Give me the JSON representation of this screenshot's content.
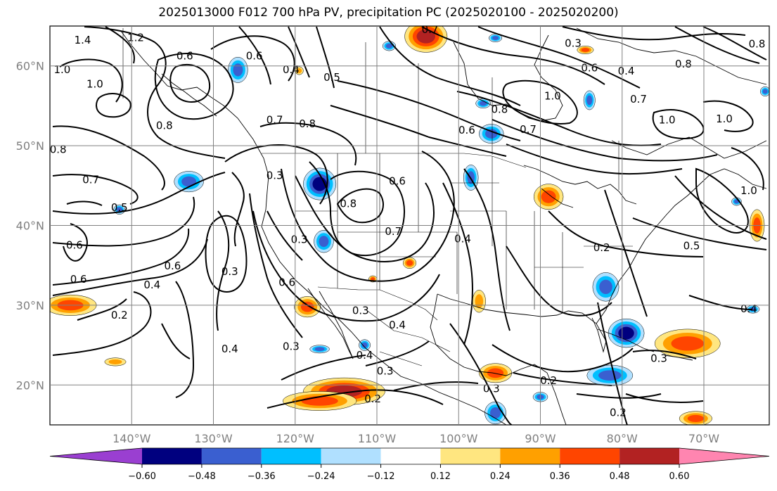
{
  "title": "2025013000 F012 700 hPa PV, precipitation PC (2025020100 - 2025020200)",
  "chart_data": {
    "type": "map-contour",
    "lon_range": [
      -150,
      -62
    ],
    "lat_range": [
      15,
      65
    ],
    "lon_ticks": [
      {
        "value": -140,
        "label": "140°W"
      },
      {
        "value": -130,
        "label": "130°W"
      },
      {
        "value": -120,
        "label": "120°W"
      },
      {
        "value": -110,
        "label": "110°W"
      },
      {
        "value": -100,
        "label": "100°W"
      },
      {
        "value": -90,
        "label": "90°W"
      },
      {
        "value": -80,
        "label": "80°W"
      },
      {
        "value": -70,
        "label": "70°W"
      }
    ],
    "lat_ticks": [
      {
        "value": 20,
        "label": "20°N"
      },
      {
        "value": 30,
        "label": "30°N"
      },
      {
        "value": 40,
        "label": "40°N"
      },
      {
        "value": 50,
        "label": "50°N"
      },
      {
        "value": 60,
        "label": "60°N"
      }
    ],
    "grid": true,
    "colorbar": {
      "orientation": "horizontal",
      "extend": "both",
      "colors": [
        "#9a3fd1",
        "#00007f",
        "#3a5fd0",
        "#00bfff",
        "#b0e0ff",
        "#ffffff",
        "#ffe680",
        "#ffa000",
        "#ff4500",
        "#b22222",
        "#ff85b0"
      ],
      "ticks": [
        {
          "value": -0.6,
          "label": "−0.60"
        },
        {
          "value": -0.48,
          "label": "−0.48"
        },
        {
          "value": -0.36,
          "label": "−0.36"
        },
        {
          "value": -0.24,
          "label": "−0.24"
        },
        {
          "value": -0.12,
          "label": "−0.12"
        },
        {
          "value": 0.12,
          "label": "0.12"
        },
        {
          "value": 0.24,
          "label": "0.24"
        },
        {
          "value": 0.36,
          "label": "0.36"
        },
        {
          "value": 0.48,
          "label": "0.48"
        },
        {
          "value": 0.6,
          "label": "0.60"
        }
      ]
    },
    "contour_labels": [
      {
        "text": "1.4",
        "lon": -146,
        "lat": 63.2
      },
      {
        "text": "1.2",
        "lon": -139.5,
        "lat": 63.5
      },
      {
        "text": "0.6",
        "lon": -133.5,
        "lat": 61.2
      },
      {
        "text": "1.0",
        "lon": -148.5,
        "lat": 59.5
      },
      {
        "text": "1.0",
        "lon": -144.5,
        "lat": 57.7
      },
      {
        "text": "0.8",
        "lon": -136,
        "lat": 52.5
      },
      {
        "text": "0.8",
        "lon": -149,
        "lat": 49.5
      },
      {
        "text": "0.7",
        "lon": -145,
        "lat": 45.7
      },
      {
        "text": "0.5",
        "lon": -141.5,
        "lat": 42.2
      },
      {
        "text": "0.6",
        "lon": -147,
        "lat": 37.5
      },
      {
        "text": "0.6",
        "lon": -135,
        "lat": 34.9
      },
      {
        "text": "0.6",
        "lon": -146.5,
        "lat": 33.2
      },
      {
        "text": "0.4",
        "lon": -137.5,
        "lat": 32.5
      },
      {
        "text": "0.2",
        "lon": -141.5,
        "lat": 28.7
      },
      {
        "text": "0.3",
        "lon": -128,
        "lat": 34.2
      },
      {
        "text": "0.4",
        "lon": -128,
        "lat": 24.5
      },
      {
        "text": "0.3",
        "lon": -122.5,
        "lat": 46.2
      },
      {
        "text": "0.3",
        "lon": -119.5,
        "lat": 38.2
      },
      {
        "text": "0.6",
        "lon": -121,
        "lat": 32.8
      },
      {
        "text": "0.3",
        "lon": -112,
        "lat": 29.3
      },
      {
        "text": "0.4",
        "lon": -111.5,
        "lat": 23.7
      },
      {
        "text": "0.3",
        "lon": -120.5,
        "lat": 24.8
      },
      {
        "text": "0.6",
        "lon": -125,
        "lat": 61.2
      },
      {
        "text": "0.4",
        "lon": -120.5,
        "lat": 59.5
      },
      {
        "text": "0.5",
        "lon": -115.5,
        "lat": 58.5
      },
      {
        "text": "0.7",
        "lon": -122.5,
        "lat": 53.2
      },
      {
        "text": "0.8",
        "lon": -118.5,
        "lat": 52.7
      },
      {
        "text": "0.6",
        "lon": -107.5,
        "lat": 45.5
      },
      {
        "text": "0.8",
        "lon": -113.5,
        "lat": 42.7
      },
      {
        "text": "0.7",
        "lon": -108,
        "lat": 39.2
      },
      {
        "text": "0.4",
        "lon": -99.5,
        "lat": 38.3
      },
      {
        "text": "0.4",
        "lon": -107.5,
        "lat": 27.5
      },
      {
        "text": "0.3",
        "lon": -109,
        "lat": 21.7
      },
      {
        "text": "0.2",
        "lon": -110.5,
        "lat": 18.2
      },
      {
        "text": "0.7",
        "lon": -103.5,
        "lat": 64.5
      },
      {
        "text": "0.3",
        "lon": -86,
        "lat": 62.8
      },
      {
        "text": "0.6",
        "lon": -84,
        "lat": 59.7
      },
      {
        "text": "0.4",
        "lon": -79.5,
        "lat": 59.3
      },
      {
        "text": "1.0",
        "lon": -88.5,
        "lat": 56.2
      },
      {
        "text": "0.8",
        "lon": -95,
        "lat": 54.5
      },
      {
        "text": "0.6",
        "lon": -99,
        "lat": 51.9
      },
      {
        "text": "0.7",
        "lon": -91.5,
        "lat": 52
      },
      {
        "text": "0.7",
        "lon": -78,
        "lat": 55.8
      },
      {
        "text": "1.0",
        "lon": -74.5,
        "lat": 53.2
      },
      {
        "text": "1.0",
        "lon": -67.5,
        "lat": 53.3
      },
      {
        "text": "0.8",
        "lon": -63.5,
        "lat": 62.7
      },
      {
        "text": "0.8",
        "lon": -72.5,
        "lat": 60.2
      },
      {
        "text": "1.0",
        "lon": -64.5,
        "lat": 44.3
      },
      {
        "text": "0.5",
        "lon": -71.5,
        "lat": 37.4
      },
      {
        "text": "0.2",
        "lon": -82.5,
        "lat": 37.2
      },
      {
        "text": "0.4",
        "lon": -64.5,
        "lat": 29.5
      },
      {
        "text": "0.3",
        "lon": -75.5,
        "lat": 23.3
      },
      {
        "text": "0.2",
        "lon": -89,
        "lat": 20.5
      },
      {
        "text": "0.3",
        "lon": -96,
        "lat": 19.5
      },
      {
        "text": "0.2",
        "lon": -80.5,
        "lat": 16.5
      }
    ],
    "anomaly_areas": [
      {
        "lon": -147.5,
        "lat": 30.0,
        "rx": 3.2,
        "ry": 1.3,
        "level": 0.42
      },
      {
        "lon": -142.0,
        "lat": 22.9,
        "rx": 1.3,
        "ry": 0.5,
        "level": 0.3
      },
      {
        "lon": -114.0,
        "lat": 19.2,
        "rx": 5.0,
        "ry": 1.7,
        "level": 0.55
      },
      {
        "lon": -117.0,
        "lat": 18.0,
        "rx": 4.5,
        "ry": 1.2,
        "level": 0.42
      },
      {
        "lon": -104.0,
        "lat": 63.7,
        "rx": 2.6,
        "ry": 2.0,
        "level": 0.5
      },
      {
        "lon": -89.0,
        "lat": 43.6,
        "rx": 1.8,
        "ry": 1.6,
        "level": 0.45
      },
      {
        "lon": -63.5,
        "lat": 40.0,
        "rx": 0.9,
        "ry": 2.0,
        "level": 0.38
      },
      {
        "lon": -118.5,
        "lat": 29.8,
        "rx": 1.6,
        "ry": 1.3,
        "level": 0.4
      },
      {
        "lon": -106.0,
        "lat": 35.3,
        "rx": 0.8,
        "ry": 0.7,
        "level": 0.38
      },
      {
        "lon": -97.5,
        "lat": 30.5,
        "rx": 0.8,
        "ry": 1.4,
        "level": 0.3
      },
      {
        "lon": -95.5,
        "lat": 21.5,
        "rx": 2.0,
        "ry": 1.2,
        "level": 0.4
      },
      {
        "lon": -72.0,
        "lat": 25.2,
        "rx": 4.0,
        "ry": 1.8,
        "level": 0.42
      },
      {
        "lon": -71.0,
        "lat": 15.8,
        "rx": 2.0,
        "ry": 0.9,
        "level": 0.4
      },
      {
        "lon": -119.5,
        "lat": 59.4,
        "rx": 0.5,
        "ry": 0.5,
        "level": 0.3
      },
      {
        "lon": -84.5,
        "lat": 62.0,
        "rx": 1.0,
        "ry": 0.5,
        "level": 0.36
      },
      {
        "lon": -110.5,
        "lat": 33.3,
        "rx": 0.5,
        "ry": 0.4,
        "level": 0.4
      },
      {
        "lon": -133.0,
        "lat": 45.5,
        "rx": 1.8,
        "ry": 1.3,
        "level": -0.42
      },
      {
        "lon": -141.5,
        "lat": 42.0,
        "rx": 0.7,
        "ry": 0.6,
        "level": -0.45
      },
      {
        "lon": -117.0,
        "lat": 45.2,
        "rx": 2.0,
        "ry": 2.0,
        "level": -0.5
      },
      {
        "lon": -116.5,
        "lat": 38.0,
        "rx": 1.2,
        "ry": 1.4,
        "level": -0.4
      },
      {
        "lon": -127.0,
        "lat": 59.5,
        "rx": 1.2,
        "ry": 1.6,
        "level": -0.4
      },
      {
        "lon": -96.0,
        "lat": 51.5,
        "rx": 1.5,
        "ry": 1.2,
        "level": -0.45
      },
      {
        "lon": -98.5,
        "lat": 46.0,
        "rx": 0.9,
        "ry": 1.6,
        "level": -0.4
      },
      {
        "lon": -84.0,
        "lat": 55.7,
        "rx": 0.7,
        "ry": 1.2,
        "level": -0.36
      },
      {
        "lon": -97.0,
        "lat": 55.3,
        "rx": 0.9,
        "ry": 0.6,
        "level": -0.36
      },
      {
        "lon": -82.0,
        "lat": 32.3,
        "rx": 1.6,
        "ry": 1.8,
        "level": -0.42
      },
      {
        "lon": -79.5,
        "lat": 26.5,
        "rx": 2.2,
        "ry": 1.8,
        "level": -0.55
      },
      {
        "lon": -81.5,
        "lat": 21.2,
        "rx": 2.8,
        "ry": 1.3,
        "level": -0.42
      },
      {
        "lon": -95.5,
        "lat": 16.5,
        "rx": 1.3,
        "ry": 1.4,
        "level": -0.45
      },
      {
        "lon": -90.0,
        "lat": 18.5,
        "rx": 0.9,
        "ry": 0.6,
        "level": -0.36
      },
      {
        "lon": -117.0,
        "lat": 24.5,
        "rx": 1.2,
        "ry": 0.5,
        "level": -0.36
      },
      {
        "lon": -111.5,
        "lat": 25.0,
        "rx": 0.7,
        "ry": 0.7,
        "level": -0.36
      },
      {
        "lon": -108.5,
        "lat": 62.5,
        "rx": 0.8,
        "ry": 0.6,
        "level": -0.36
      },
      {
        "lon": -95.5,
        "lat": 63.5,
        "rx": 0.8,
        "ry": 0.5,
        "level": -0.4
      },
      {
        "lon": -62.5,
        "lat": 56.8,
        "rx": 0.6,
        "ry": 0.6,
        "level": -0.36
      },
      {
        "lon": -64.0,
        "lat": 29.5,
        "rx": 0.8,
        "ry": 0.5,
        "level": -0.36
      },
      {
        "lon": -66.0,
        "lat": 43.0,
        "rx": 0.6,
        "ry": 0.5,
        "level": -0.36
      }
    ]
  }
}
